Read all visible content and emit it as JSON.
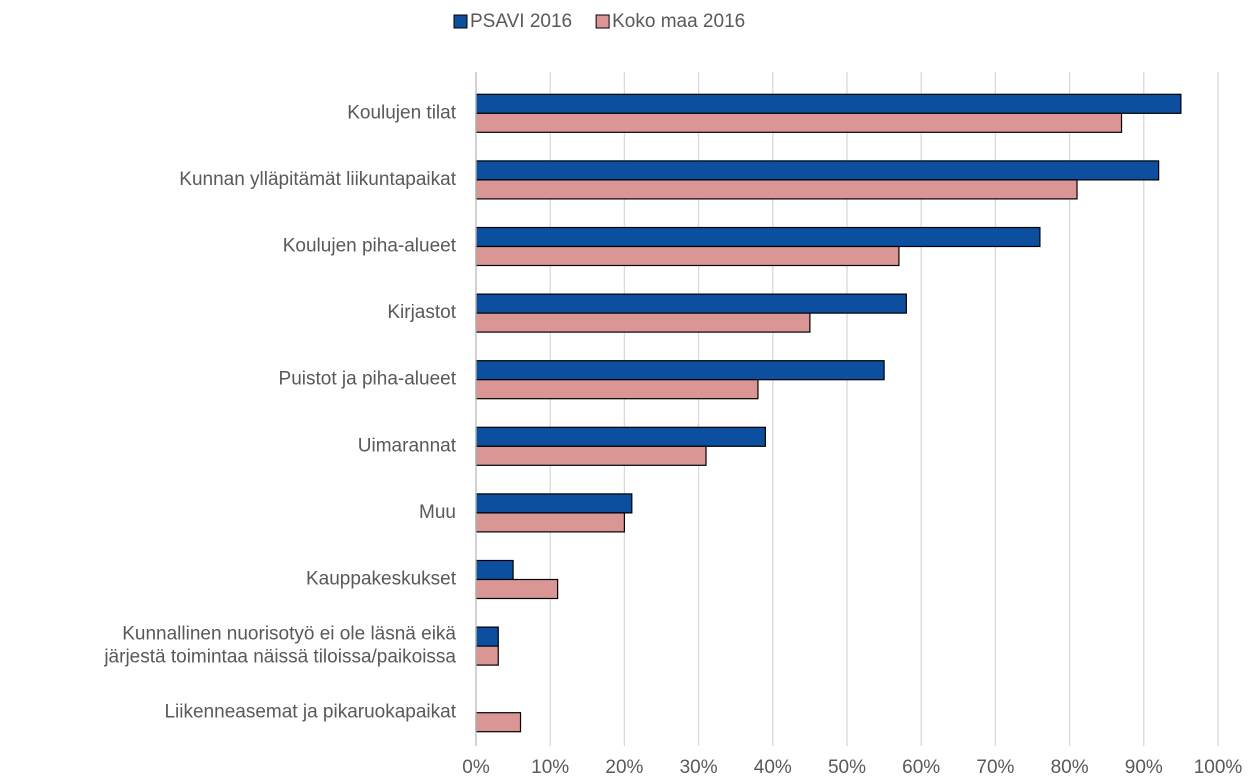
{
  "chart_data": {
    "type": "hbar",
    "categories": [
      "Koulujen tilat",
      "Kunnan ylläpitämät liikuntapaikat",
      "Koulujen piha-alueet",
      "Kirjastot",
      "Puistot ja piha-alueet",
      "Uimarannat",
      "Muu",
      "Kauppakeskukset",
      [
        "Kunnallinen nuorisotyö ei ole läsnä eikä",
        "järjestä toimintaa näissä tiloissa/paikoissa"
      ],
      "Liikenneasemat ja pikaruokapaikat"
    ],
    "series": [
      {
        "name": "PSAVI 2016",
        "color": "#0b4f9e",
        "values": [
          95,
          92,
          76,
          58,
          55,
          39,
          21,
          5,
          3,
          0
        ]
      },
      {
        "name": "Koko maa 2016",
        "color": "#d99694",
        "values": [
          87,
          81,
          57,
          45,
          38,
          31,
          20,
          11,
          3,
          6
        ]
      }
    ],
    "xlim": [
      0,
      100
    ],
    "xticks": [
      {
        "value": 0,
        "label": "0%"
      },
      {
        "value": 10,
        "label": "10%"
      },
      {
        "value": 20,
        "label": "20%"
      },
      {
        "value": 30,
        "label": "30%"
      },
      {
        "value": 40,
        "label": "40%"
      },
      {
        "value": 50,
        "label": "50%"
      },
      {
        "value": 60,
        "label": "60%"
      },
      {
        "value": 70,
        "label": "70%"
      },
      {
        "value": 80,
        "label": "80%"
      },
      {
        "value": 90,
        "label": "90%"
      },
      {
        "value": 100,
        "label": "100%"
      }
    ],
    "grid": true,
    "legend": "top"
  }
}
